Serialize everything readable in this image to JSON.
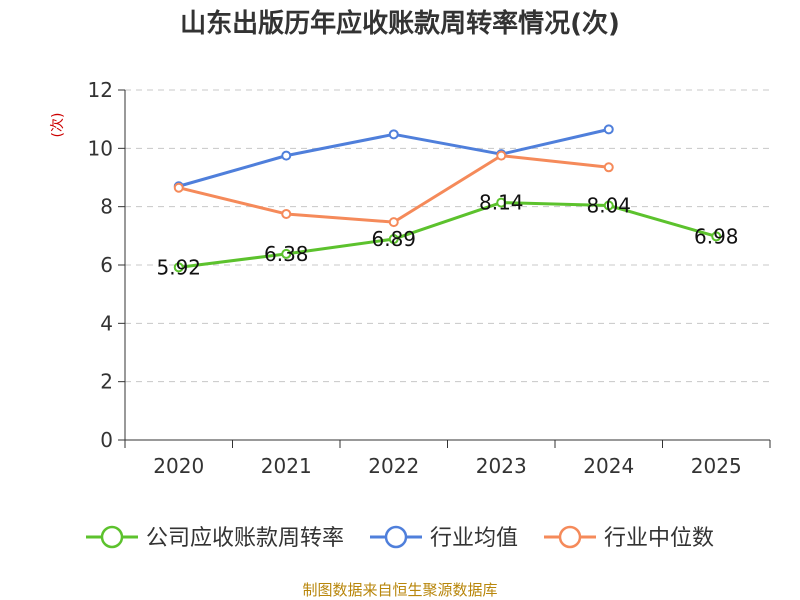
{
  "chart_data": {
    "type": "line",
    "title": "山东出版历年应收账款周转率情况(次)",
    "xlabel": "",
    "ylabel": "(次)",
    "categories": [
      "2020",
      "2021",
      "2022",
      "2023",
      "2024",
      "2025"
    ],
    "ylim": [
      0,
      12
    ],
    "yticks": [
      "0",
      "2",
      "4",
      "6",
      "8",
      "10",
      "12"
    ],
    "grid": true,
    "legend_position": "bottom",
    "series": [
      {
        "name": "公司应收账款周转率",
        "color": "#5cc22d",
        "values": [
          5.92,
          6.38,
          6.89,
          8.14,
          8.04,
          6.98
        ],
        "labels": [
          "5.92",
          "6.38",
          "6.89",
          "8.14",
          "8.04",
          "6.98"
        ]
      },
      {
        "name": "行业均值",
        "color": "#4f7fdb",
        "values": [
          8.7,
          9.75,
          10.48,
          9.8,
          10.65,
          null
        ]
      },
      {
        "name": "行业中位数",
        "color": "#f58a5a",
        "values": [
          8.65,
          7.75,
          7.47,
          9.75,
          9.35,
          null
        ]
      }
    ],
    "source": "制图数据来自恒生聚源数据库"
  }
}
